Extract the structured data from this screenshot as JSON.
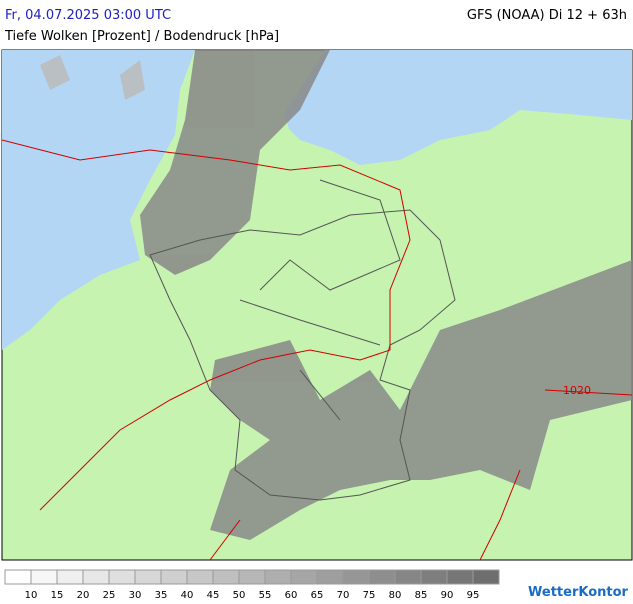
{
  "header": {
    "datetime": "Fr, 04.07.2025 03:00 UTC",
    "model": "GFS (NOAA) Di 12 + 63h",
    "title": "Tiefe Wolken [Prozent] / Bodendruck [hPa]"
  },
  "map": {
    "isobar_labels": [
      "1020"
    ]
  },
  "legend": {
    "labels": [
      10,
      15,
      20,
      25,
      30,
      35,
      40,
      45,
      50,
      55,
      60,
      65,
      70,
      75,
      80,
      85,
      90,
      95
    ]
  },
  "logo": {
    "text": "WetterKontor"
  }
}
